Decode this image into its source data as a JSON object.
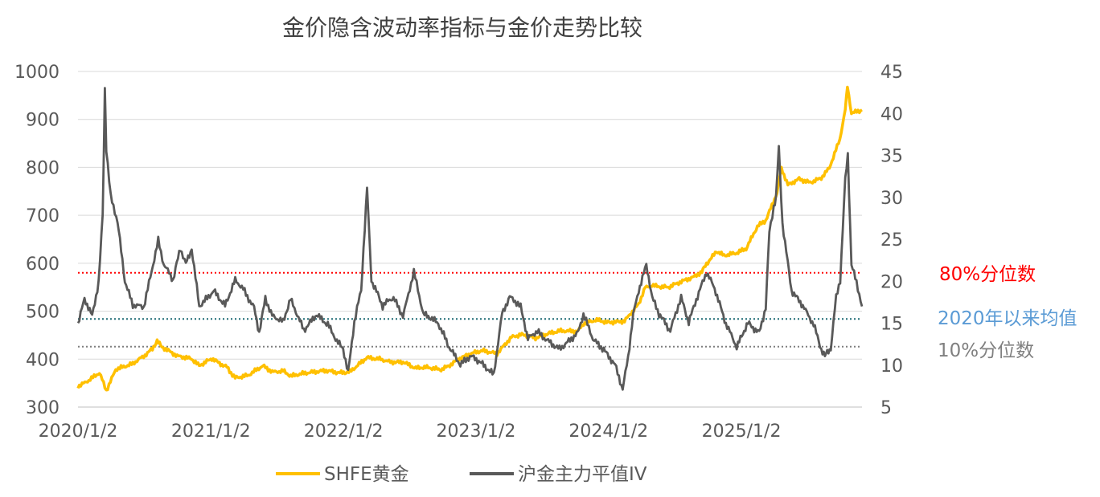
{
  "chart_data": {
    "type": "line",
    "title": "金价隐含波动率指标与金价走势比较",
    "x_ticks": [
      "2020/1/2",
      "2021/1/2",
      "2022/1/2",
      "2023/1/2",
      "2024/1/2",
      "2025/1/2"
    ],
    "x_range": [
      "2020/1/2",
      "2025/11/30"
    ],
    "y_left": {
      "min": 300,
      "max": 1000,
      "step": 100,
      "ticks": [
        "300",
        "400",
        "500",
        "600",
        "700",
        "800",
        "900",
        "1000"
      ]
    },
    "y_right": {
      "min": 5,
      "max": 45,
      "step": 5,
      "ticks": [
        "5",
        "10",
        "15",
        "20",
        "25",
        "30",
        "35",
        "40",
        "45"
      ]
    },
    "grid": "horizontal",
    "legend_position": "bottom",
    "series": [
      {
        "name": "SHFE黄金",
        "axis": "left",
        "color": "#FFC000",
        "points": [
          [
            "2020/1/2",
            345
          ],
          [
            "2020/2/1",
            355
          ],
          [
            "2020/3/1",
            370
          ],
          [
            "2020/3/20",
            335
          ],
          [
            "2020/4/15",
            380
          ],
          [
            "2020/6/1",
            390
          ],
          [
            "2020/7/1",
            405
          ],
          [
            "2020/7/25",
            420
          ],
          [
            "2020/8/7",
            440
          ],
          [
            "2020/8/20",
            425
          ],
          [
            "2020/10/1",
            405
          ],
          [
            "2020/11/10",
            400
          ],
          [
            "2020/12/1",
            385
          ],
          [
            "2021/1/5",
            400
          ],
          [
            "2021/2/15",
            385
          ],
          [
            "2021/3/10",
            360
          ],
          [
            "2021/4/15",
            365
          ],
          [
            "2021/5/25",
            385
          ],
          [
            "2021/6/20",
            375
          ],
          [
            "2021/7/20",
            375
          ],
          [
            "2021/8/10",
            365
          ],
          [
            "2021/9/15",
            370
          ],
          [
            "2021/11/15",
            375
          ],
          [
            "2021/12/20",
            372
          ],
          [
            "2022/1/20",
            375
          ],
          [
            "2022/3/8",
            405
          ],
          [
            "2022/4/15",
            400
          ],
          [
            "2022/5/15",
            395
          ],
          [
            "2022/6/15",
            395
          ],
          [
            "2022/7/20",
            380
          ],
          [
            "2022/8/20",
            382
          ],
          [
            "2022/9/28",
            378
          ],
          [
            "2022/11/15",
            400
          ],
          [
            "2022/12/20",
            410
          ],
          [
            "2023/1/20",
            418
          ],
          [
            "2023/3/1",
            410
          ],
          [
            "2023/4/10",
            445
          ],
          [
            "2023/5/5",
            450
          ],
          [
            "2023/6/15",
            445
          ],
          [
            "2023/7/20",
            455
          ],
          [
            "2023/8/20",
            458
          ],
          [
            "2023/10/10",
            460
          ],
          [
            "2023/10/25",
            475
          ],
          [
            "2023/12/1",
            480
          ],
          [
            "2023/12/28",
            478
          ],
          [
            "2024/2/15",
            480
          ],
          [
            "2024/3/1",
            495
          ],
          [
            "2024/3/25",
            515
          ],
          [
            "2024/4/12",
            550
          ],
          [
            "2024/5/1",
            555
          ],
          [
            "2024/6/15",
            550
          ],
          [
            "2024/7/20",
            560
          ],
          [
            "2024/8/20",
            570
          ],
          [
            "2024/9/15",
            580
          ],
          [
            "2024/9/28",
            600
          ],
          [
            "2024/10/25",
            625
          ],
          [
            "2024/11/15",
            615
          ],
          [
            "2024/12/20",
            620
          ],
          [
            "2025/1/15",
            630
          ],
          [
            "2025/2/15",
            675
          ],
          [
            "2025/3/10",
            690
          ],
          [
            "2025/4/10",
            745
          ],
          [
            "2025/4/22",
            800
          ],
          [
            "2025/5/10",
            765
          ],
          [
            "2025/6/10",
            775
          ],
          [
            "2025/7/10",
            770
          ],
          [
            "2025/8/10",
            778
          ],
          [
            "2025/9/1",
            800
          ],
          [
            "2025/9/30",
            860
          ],
          [
            "2025/10/15",
            920
          ],
          [
            "2025/10/21",
            970
          ],
          [
            "2025/11/1",
            915
          ],
          [
            "2025/11/30",
            920
          ]
        ]
      },
      {
        "name": "沪金主力平值IV",
        "axis": "right",
        "color": "#595959",
        "points": [
          [
            "2020/1/2",
            15
          ],
          [
            "2020/1/20",
            18
          ],
          [
            "2020/2/10",
            16
          ],
          [
            "2020/2/28",
            20
          ],
          [
            "2020/3/10",
            28
          ],
          [
            "2020/3/16",
            43
          ],
          [
            "2020/3/20",
            36
          ],
          [
            "2020/4/1",
            30
          ],
          [
            "2020/4/20",
            27
          ],
          [
            "2020/5/10",
            20
          ],
          [
            "2020/6/1",
            17
          ],
          [
            "2020/7/1",
            17
          ],
          [
            "2020/8/10",
            25
          ],
          [
            "2020/8/25",
            22
          ],
          [
            "2020/9/20",
            20
          ],
          [
            "2020/10/10",
            24
          ],
          [
            "2020/10/25",
            22
          ],
          [
            "2020/11/10",
            24
          ],
          [
            "2020/12/1",
            17
          ],
          [
            "2021/1/10",
            19
          ],
          [
            "2021/2/10",
            17
          ],
          [
            "2021/3/10",
            20
          ],
          [
            "2021/4/1",
            19
          ],
          [
            "2021/5/1",
            17
          ],
          [
            "2021/5/15",
            14
          ],
          [
            "2021/6/1",
            18
          ],
          [
            "2021/6/20",
            16
          ],
          [
            "2021/7/20",
            15
          ],
          [
            "2021/8/9",
            18
          ],
          [
            "2021/9/15",
            14
          ],
          [
            "2021/10/20",
            16
          ],
          [
            "2021/11/20",
            15
          ],
          [
            "2021/12/15",
            13
          ],
          [
            "2022/1/1",
            12
          ],
          [
            "2022/1/15",
            9
          ],
          [
            "2022/2/1",
            15
          ],
          [
            "2022/2/20",
            19
          ],
          [
            "2022/3/8",
            31
          ],
          [
            "2022/3/20",
            20
          ],
          [
            "2022/4/20",
            17
          ],
          [
            "2022/5/20",
            18
          ],
          [
            "2022/6/15",
            16
          ],
          [
            "2022/7/15",
            21
          ],
          [
            "2022/8/10",
            16
          ],
          [
            "2022/9/20",
            15
          ],
          [
            "2022/10/20",
            12
          ],
          [
            "2022/11/20",
            10
          ],
          [
            "2022/12/20",
            11
          ],
          [
            "2023/1/20",
            10
          ],
          [
            "2023/2/20",
            9
          ],
          [
            "2023/3/15",
            16
          ],
          [
            "2023/4/5",
            18
          ],
          [
            "2023/5/5",
            17
          ],
          [
            "2023/5/25",
            13
          ],
          [
            "2023/6/20",
            14
          ],
          [
            "2023/7/20",
            13
          ],
          [
            "2023/8/20",
            12
          ],
          [
            "2023/10/10",
            14
          ],
          [
            "2023/10/25",
            16
          ],
          [
            "2023/11/20",
            13
          ],
          [
            "2023/12/20",
            12
          ],
          [
            "2024/1/20",
            10
          ],
          [
            "2024/2/10",
            7
          ],
          [
            "2024/2/25",
            11
          ],
          [
            "2024/3/10",
            16
          ],
          [
            "2024/3/25",
            19
          ],
          [
            "2024/4/15",
            22
          ],
          [
            "2024/5/1",
            18
          ],
          [
            "2024/5/20",
            16
          ],
          [
            "2024/6/20",
            14
          ],
          [
            "2024/7/20",
            18
          ],
          [
            "2024/8/10",
            15
          ],
          [
            "2024/9/10",
            19
          ],
          [
            "2024/9/28",
            21
          ],
          [
            "2024/10/20",
            19
          ],
          [
            "2024/11/20",
            15
          ],
          [
            "2024/12/20",
            12
          ],
          [
            "2025/1/20",
            15
          ],
          [
            "2025/2/20",
            14
          ],
          [
            "2025/3/10",
            17
          ],
          [
            "2025/3/20",
            26
          ],
          [
            "2025/4/1",
            29
          ],
          [
            "2025/4/7",
            30
          ],
          [
            "2025/4/15",
            36
          ],
          [
            "2025/4/25",
            27
          ],
          [
            "2025/5/20",
            19
          ],
          [
            "2025/6/20",
            17
          ],
          [
            "2025/7/20",
            15
          ],
          [
            "2025/8/10",
            12
          ],
          [
            "2025/8/20",
            11
          ],
          [
            "2025/9/5",
            12
          ],
          [
            "2025/9/20",
            18
          ],
          [
            "2025/10/1",
            20
          ],
          [
            "2025/10/15",
            32
          ],
          [
            "2025/10/22",
            35
          ],
          [
            "2025/11/1",
            22
          ],
          [
            "2025/11/15",
            20
          ],
          [
            "2025/11/30",
            17
          ]
        ]
      }
    ],
    "reference_lines": [
      {
        "label": "80%分位数",
        "axis": "right",
        "value": 21,
        "color": "#FF0000",
        "text_color": "#FF0000"
      },
      {
        "label": "2020年以来均值",
        "axis": "right",
        "value": 15.5,
        "color": "#1F6B75",
        "text_color": "#5B9BD5"
      },
      {
        "label": "10%分位数",
        "axis": "right",
        "value": 12.2,
        "color": "#7F7F7F",
        "text_color": "#808080"
      }
    ]
  }
}
